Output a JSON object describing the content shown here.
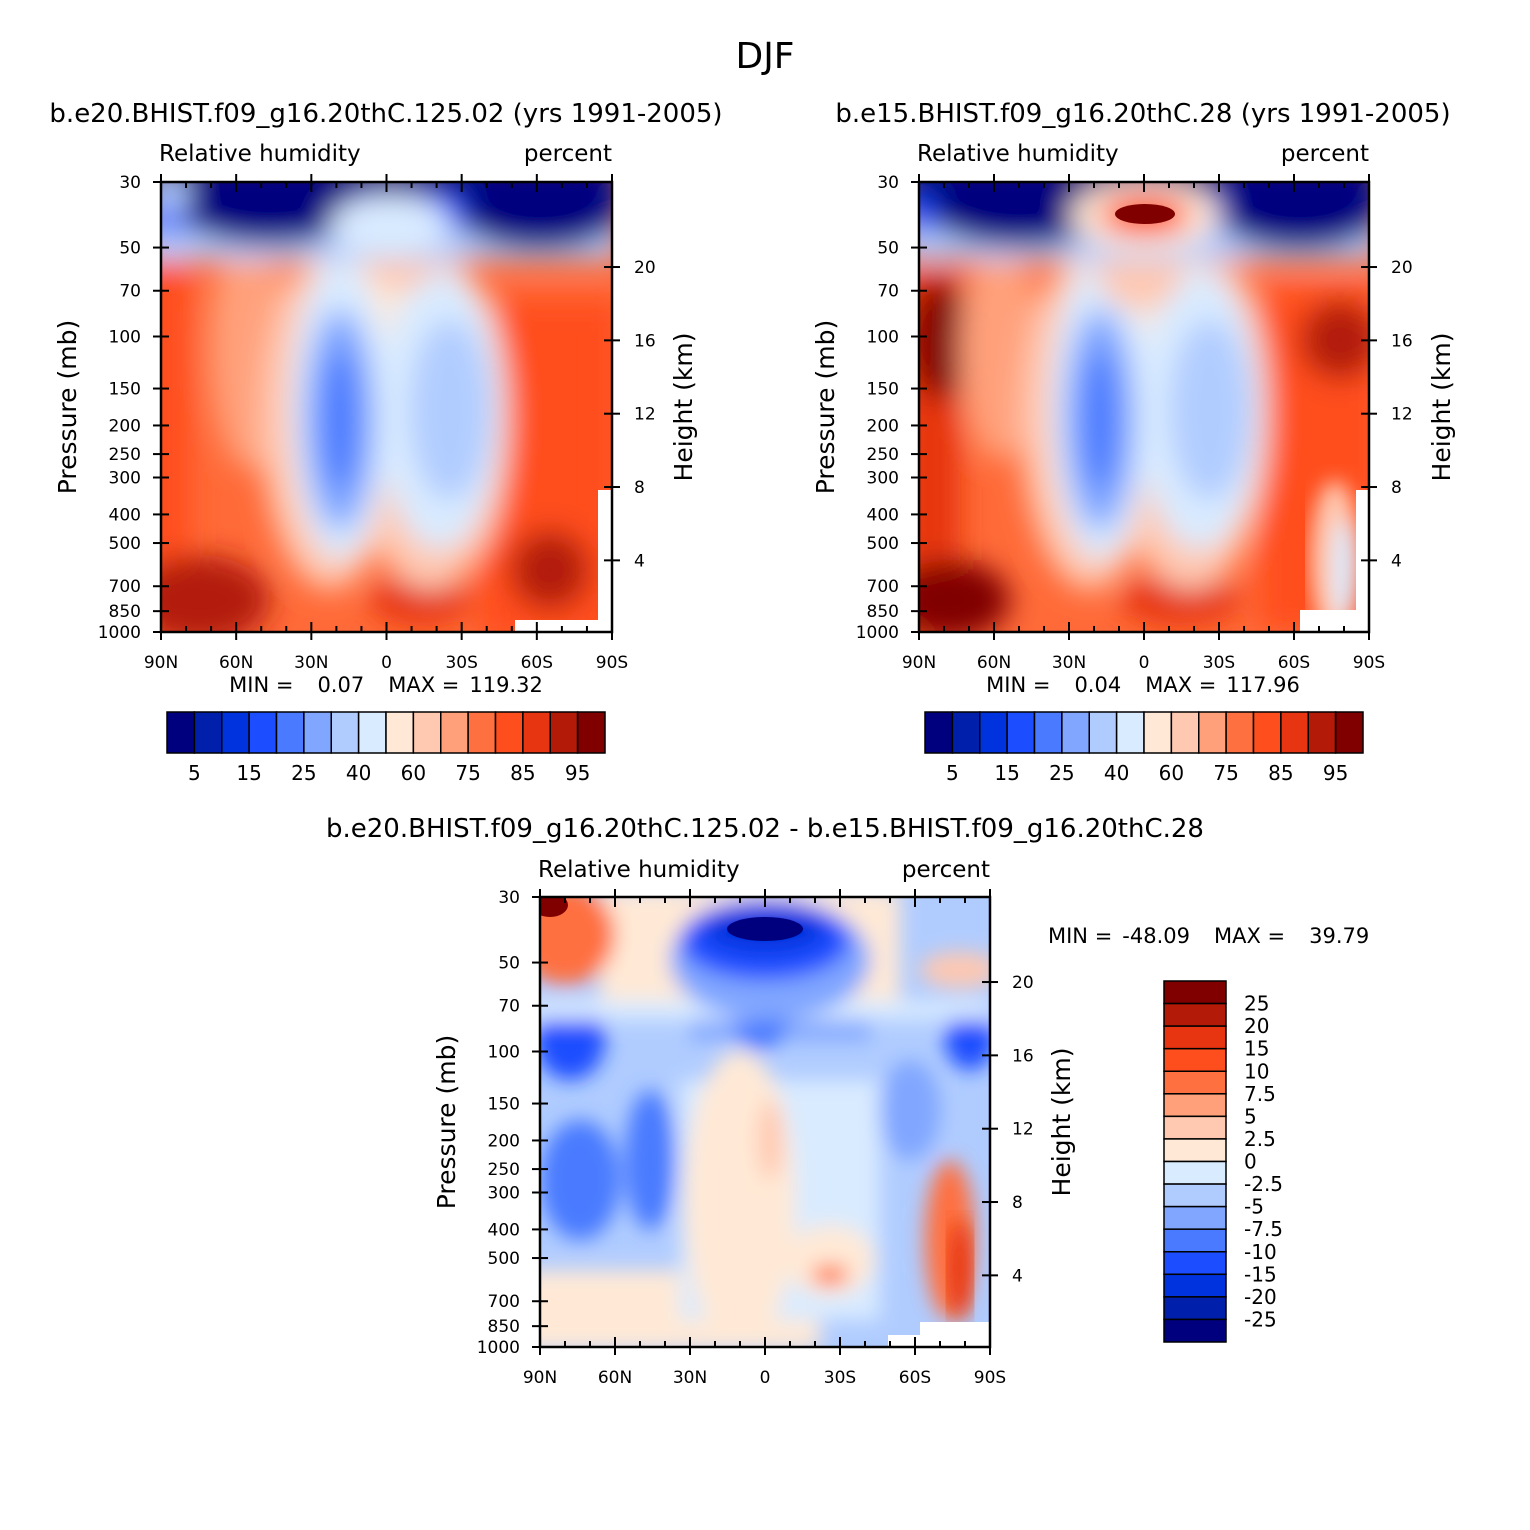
{
  "figure_title": "DJF",
  "chart_data": [
    {
      "type": "heatmap",
      "title": "b.e20.BHIST.f09_g16.20thC.125.02 (yrs 1991-2005)",
      "left_label": "Relative humidity",
      "right_label": "percent",
      "xlabel": "",
      "ylabel": "Pressure (mb)",
      "ylabel_right": "Height (km)",
      "xticks": [
        "90N",
        "60N",
        "30N",
        "0",
        "30S",
        "60S",
        "90S"
      ],
      "yticks": [
        "30",
        "50",
        "70",
        "100",
        "150",
        "200",
        "250",
        "300",
        "400",
        "500",
        "700",
        "850",
        "1000"
      ],
      "yticks_right": [
        "20",
        "16",
        "12",
        "8",
        "4"
      ],
      "ylim": [
        30,
        1000
      ],
      "stats": {
        "min_label": "MIN =",
        "min": "0.07",
        "max_label": "MAX =",
        "max": "119.32"
      },
      "levels": [
        5,
        10,
        15,
        20,
        25,
        30,
        40,
        50,
        60,
        70,
        75,
        80,
        85,
        90,
        95
      ],
      "colorbar_labels": [
        "5",
        "15",
        "25",
        "40",
        "60",
        "75",
        "85",
        "95"
      ],
      "colors": [
        "#00007f",
        "#001faa",
        "#0033dd",
        "#1c4dff",
        "#4a7aff",
        "#80a6ff",
        "#b0ccff",
        "#d9ebff",
        "#ffe9d6",
        "#ffc8b0",
        "#ffa07a",
        "#ff7040",
        "#ff4e1e",
        "#e63510",
        "#b31a08",
        "#800000"
      ]
    },
    {
      "type": "heatmap",
      "title": "b.e15.BHIST.f09_g16.20thC.28 (yrs 1991-2005)",
      "left_label": "Relative humidity",
      "right_label": "percent",
      "xlabel": "",
      "ylabel": "Pressure (mb)",
      "ylabel_right": "Height (km)",
      "xticks": [
        "90N",
        "60N",
        "30N",
        "0",
        "30S",
        "60S",
        "90S"
      ],
      "yticks": [
        "30",
        "50",
        "70",
        "100",
        "150",
        "200",
        "250",
        "300",
        "400",
        "500",
        "700",
        "850",
        "1000"
      ],
      "yticks_right": [
        "20",
        "16",
        "12",
        "8",
        "4"
      ],
      "ylim": [
        30,
        1000
      ],
      "stats": {
        "min_label": "MIN =",
        "min": "0.04",
        "max_label": "MAX =",
        "max": "117.96"
      },
      "levels": [
        5,
        10,
        15,
        20,
        25,
        30,
        40,
        50,
        60,
        70,
        75,
        80,
        85,
        90,
        95
      ],
      "colorbar_labels": [
        "5",
        "15",
        "25",
        "40",
        "60",
        "75",
        "85",
        "95"
      ],
      "colors": [
        "#00007f",
        "#001faa",
        "#0033dd",
        "#1c4dff",
        "#4a7aff",
        "#80a6ff",
        "#b0ccff",
        "#d9ebff",
        "#ffe9d6",
        "#ffc8b0",
        "#ffa07a",
        "#ff7040",
        "#ff4e1e",
        "#e63510",
        "#b31a08",
        "#800000"
      ]
    },
    {
      "type": "heatmap",
      "title": "b.e20.BHIST.f09_g16.20thC.125.02 - b.e15.BHIST.f09_g16.20thC.28",
      "left_label": "Relative humidity",
      "right_label": "percent",
      "xlabel": "",
      "ylabel": "Pressure (mb)",
      "ylabel_right": "Height (km)",
      "xticks": [
        "90N",
        "60N",
        "30N",
        "0",
        "30S",
        "60S",
        "90S"
      ],
      "yticks": [
        "30",
        "50",
        "70",
        "100",
        "150",
        "200",
        "250",
        "300",
        "400",
        "500",
        "700",
        "850",
        "1000"
      ],
      "yticks_right": [
        "20",
        "16",
        "12",
        "8",
        "4"
      ],
      "ylim": [
        30,
        1000
      ],
      "stats": {
        "min_label": "MIN =",
        "min": "-48.09",
        "max_label": "MAX =",
        "max": "39.79"
      },
      "levels": [
        -25,
        -20,
        -15,
        -10,
        -7.5,
        -5,
        -2.5,
        0,
        2.5,
        5,
        7.5,
        10,
        15,
        20,
        25
      ],
      "colorbar_labels": [
        "25",
        "20",
        "15",
        "10",
        "7.5",
        "5",
        "2.5",
        "0",
        "-2.5",
        "-5",
        "-7.5",
        "-10",
        "-15",
        "-20",
        "-25"
      ],
      "colors": [
        "#800000",
        "#b31a08",
        "#e63510",
        "#ff4e1e",
        "#ff7040",
        "#ffa07a",
        "#ffc8b0",
        "#ffe9d6",
        "#d9ebff",
        "#b0ccff",
        "#80a6ff",
        "#4a7aff",
        "#1c4dff",
        "#0033dd",
        "#001faa",
        "#00007f"
      ]
    }
  ]
}
